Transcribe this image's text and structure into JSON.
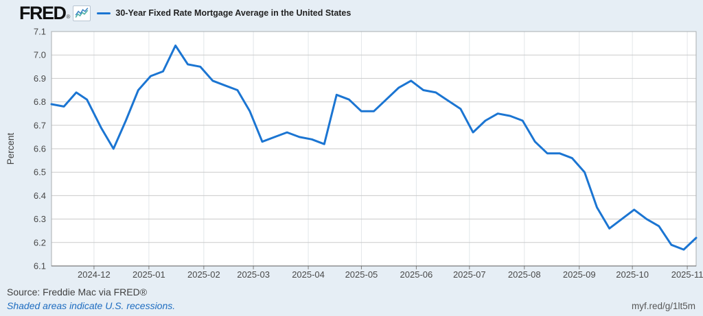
{
  "header": {
    "logo_text": "FRED",
    "registered_mark": "®",
    "legend": {
      "label": "30-Year Fixed Rate Mortgage Average in the United States"
    }
  },
  "footer": {
    "source": "Source: Freddie Mac via FRED®",
    "recession_note": "Shaded areas indicate U.S. recessions.",
    "share_url": "myf.red/g/1lt5m"
  },
  "colors": {
    "background": "#e6eef5",
    "plot_background": "#ffffff",
    "series_line": "#1b75d2",
    "h_gridline": "#cacaca",
    "v_gridline": "#e2e6e9",
    "plot_border": "#a9adb0",
    "x_axis_line": "#5a5a5a",
    "tick_mark": "#808080",
    "tick_label": "#484848",
    "axis_title": "#444444",
    "link_blue": "#1d6cc0",
    "icon_line_blue": "#3f87c5",
    "icon_line_teal": "#4fb3a4"
  },
  "chart_data": {
    "type": "line",
    "title": "30-Year Fixed Rate Mortgage Average in the United States",
    "xlabel": "",
    "ylabel": "Percent",
    "ylim": [
      6.1,
      7.1
    ],
    "grid": true,
    "legend_position": "top-left",
    "y_ticks": [
      "7.1",
      "7.0",
      "6.9",
      "6.8",
      "6.7",
      "6.6",
      "6.5",
      "6.4",
      "6.3",
      "6.2",
      "6.1"
    ],
    "x_ticks": [
      "2024-12",
      "2025-01",
      "2025-02",
      "2025-03",
      "2025-04",
      "2025-05",
      "2025-06",
      "2025-07",
      "2025-08",
      "2025-09",
      "2025-10",
      "2025-11"
    ],
    "series": [
      {
        "name": "30-Year Fixed Rate Mortgage Average in the United States",
        "color": "#1b75d2",
        "frequency": "weekly",
        "dates": [
          "2024-11-07",
          "2024-11-14",
          "2024-11-21",
          "2024-11-27",
          "2024-12-05",
          "2024-12-12",
          "2024-12-19",
          "2024-12-26",
          "2025-01-02",
          "2025-01-09",
          "2025-01-16",
          "2025-01-23",
          "2025-01-30",
          "2025-02-06",
          "2025-02-13",
          "2025-02-20",
          "2025-02-27",
          "2025-03-06",
          "2025-03-13",
          "2025-03-20",
          "2025-03-27",
          "2025-04-03",
          "2025-04-10",
          "2025-04-17",
          "2025-04-24",
          "2025-05-01",
          "2025-05-08",
          "2025-05-15",
          "2025-05-22",
          "2025-05-29",
          "2025-06-05",
          "2025-06-12",
          "2025-06-18",
          "2025-06-26",
          "2025-07-03",
          "2025-07-10",
          "2025-07-17",
          "2025-07-24",
          "2025-07-31",
          "2025-08-07",
          "2025-08-14",
          "2025-08-21",
          "2025-08-28",
          "2025-09-04",
          "2025-09-11",
          "2025-09-18",
          "2025-09-25",
          "2025-10-02",
          "2025-10-09",
          "2025-10-16",
          "2025-10-23",
          "2025-10-30",
          "2025-11-06"
        ],
        "values": [
          6.79,
          6.78,
          6.84,
          6.81,
          6.69,
          6.6,
          6.72,
          6.85,
          6.91,
          6.93,
          7.04,
          6.96,
          6.95,
          6.89,
          6.87,
          6.85,
          6.76,
          6.63,
          6.65,
          6.67,
          6.65,
          6.64,
          6.62,
          6.83,
          6.81,
          6.76,
          6.76,
          6.81,
          6.86,
          6.89,
          6.85,
          6.84,
          6.81,
          6.77,
          6.67,
          6.72,
          6.75,
          6.74,
          6.72,
          6.63,
          6.58,
          6.58,
          6.56,
          6.5,
          6.35,
          6.26,
          6.3,
          6.34,
          6.3,
          6.27,
          6.19,
          6.17,
          6.22
        ]
      }
    ]
  }
}
